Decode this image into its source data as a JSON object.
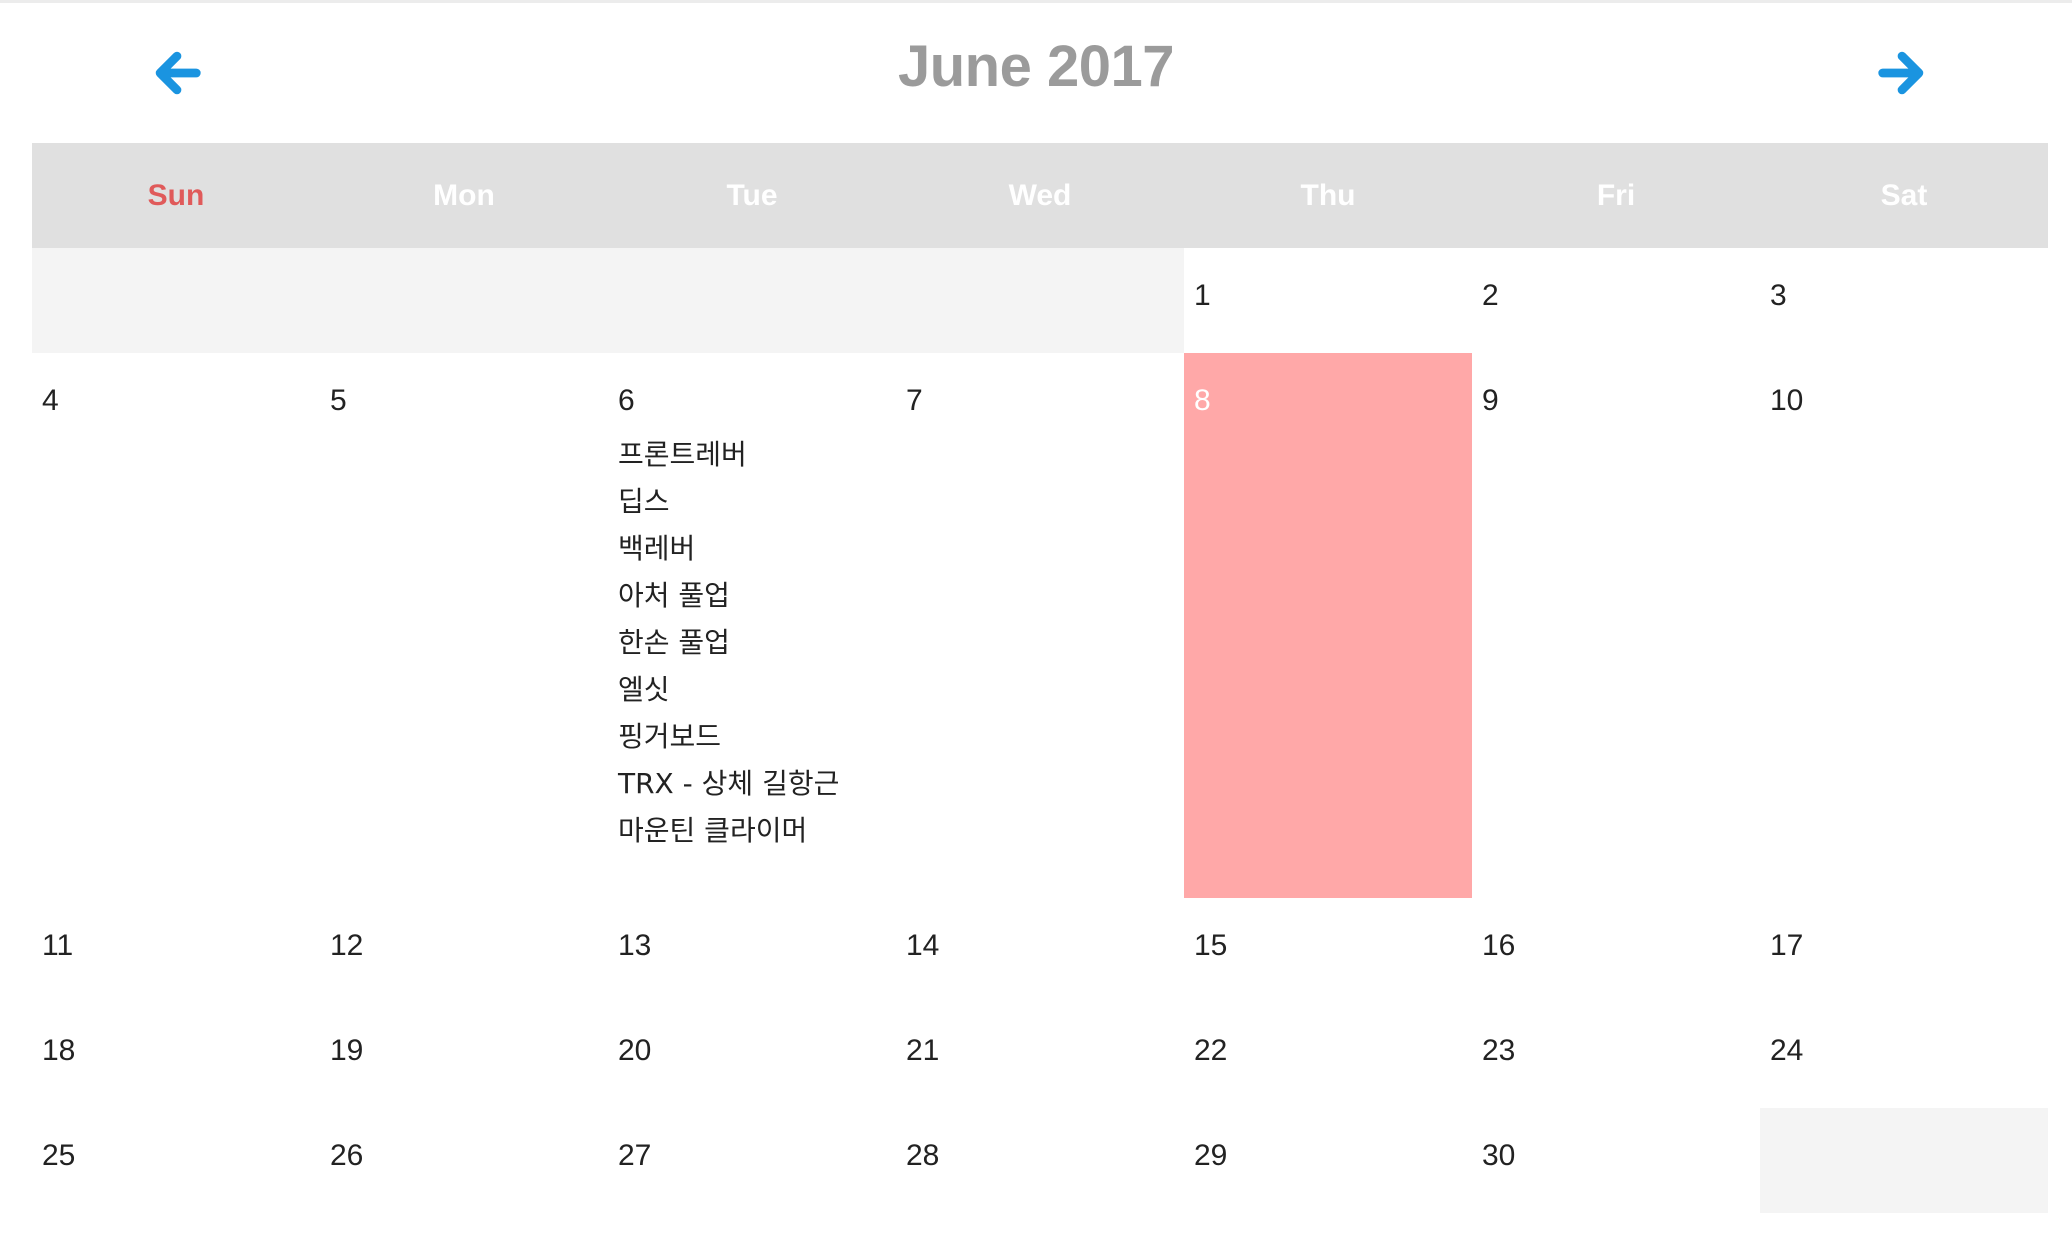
{
  "calendar": {
    "title": "June 2017",
    "prev_icon": "arrow-left-icon",
    "next_icon": "arrow-right-icon",
    "accent_color": "#1a94e0",
    "today_color": "#ffa8a8",
    "sunday_color": "#e05a5a",
    "weekdays": [
      "Sun",
      "Mon",
      "Tue",
      "Wed",
      "Thu",
      "Fri",
      "Sat"
    ],
    "weeks": [
      [
        null,
        null,
        null,
        null,
        {
          "day": "1"
        },
        {
          "day": "2"
        },
        {
          "day": "3"
        }
      ],
      [
        {
          "day": "4"
        },
        {
          "day": "5"
        },
        {
          "day": "6",
          "events": [
            "프론트레버",
            "딥스",
            "백레버",
            "아처 풀업",
            "한손 풀업",
            "엘싯",
            "핑거보드",
            "TRX - 상체 길항근",
            "마운틴 클라이머"
          ]
        },
        {
          "day": "7"
        },
        {
          "day": "8",
          "today": true
        },
        {
          "day": "9"
        },
        {
          "day": "10"
        }
      ],
      [
        {
          "day": "11"
        },
        {
          "day": "12"
        },
        {
          "day": "13"
        },
        {
          "day": "14"
        },
        {
          "day": "15"
        },
        {
          "day": "16"
        },
        {
          "day": "17"
        }
      ],
      [
        {
          "day": "18"
        },
        {
          "day": "19"
        },
        {
          "day": "20"
        },
        {
          "day": "21"
        },
        {
          "day": "22"
        },
        {
          "day": "23"
        },
        {
          "day": "24"
        }
      ],
      [
        {
          "day": "25"
        },
        {
          "day": "26"
        },
        {
          "day": "27"
        },
        {
          "day": "28"
        },
        {
          "day": "29"
        },
        {
          "day": "30"
        },
        null
      ]
    ]
  }
}
